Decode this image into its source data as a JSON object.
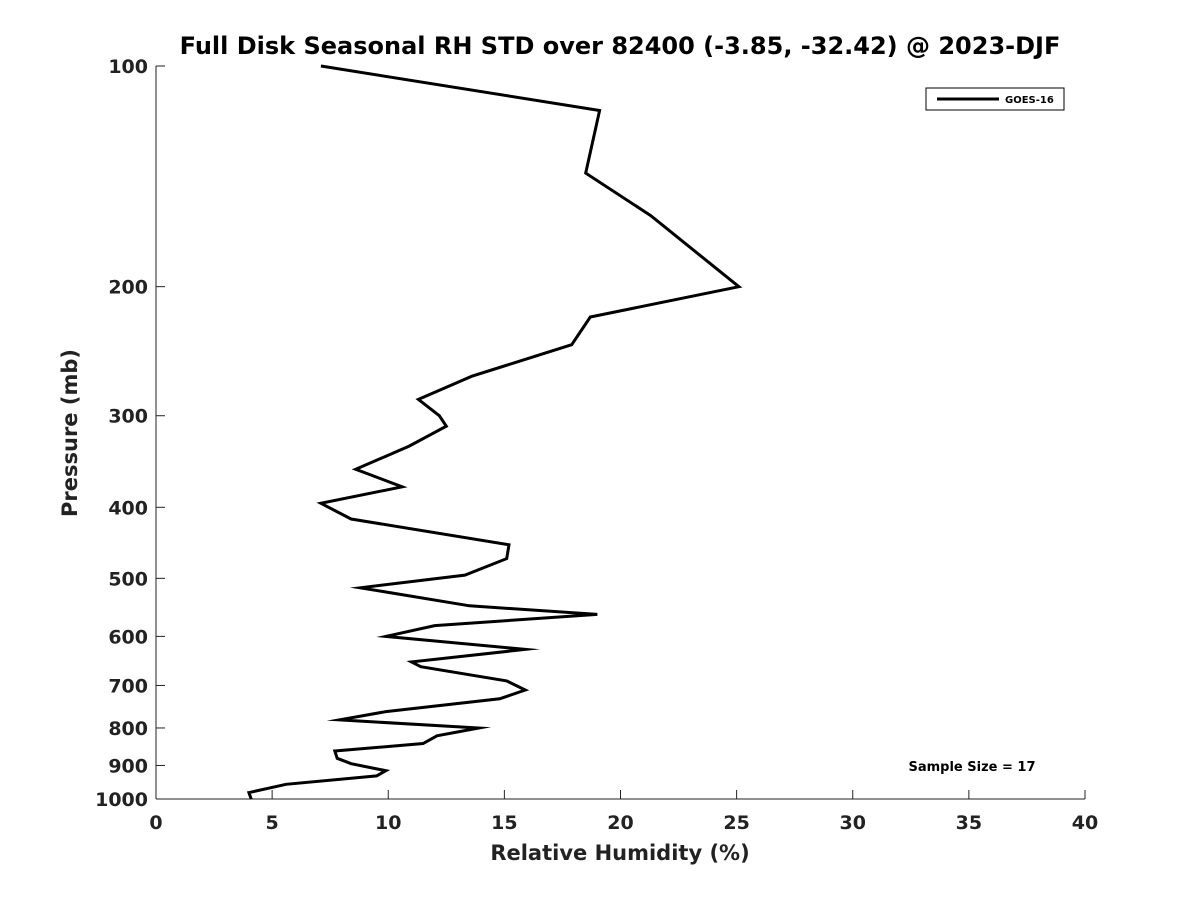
{
  "chart_data": {
    "type": "line",
    "title": "Full Disk Seasonal RH STD over 82400 (-3.85, -32.42) @ 2023-DJF",
    "xlabel": "Relative Humidity (%)",
    "ylabel": "Pressure (mb)",
    "xlim": [
      0,
      40
    ],
    "ylim": [
      1000,
      100
    ],
    "yscale": "log",
    "xticks": [
      0,
      5,
      10,
      15,
      20,
      25,
      30,
      35,
      40
    ],
    "yticks": [
      100,
      200,
      300,
      400,
      500,
      600,
      700,
      800,
      900,
      1000
    ],
    "grid": false,
    "legend_position": "top-right",
    "series": [
      {
        "name": "GOES-16",
        "color": "#000000",
        "x": [
          7.1,
          19.1,
          18.5,
          21.3,
          25.1,
          18.7,
          17.9,
          13.6,
          11.3,
          12.2,
          12.5,
          10.9,
          8.6,
          10.6,
          7.1,
          8.4,
          15.2,
          15.1,
          13.3,
          8.8,
          13.5,
          19.0,
          12.0,
          9.9,
          15.9,
          11.0,
          11.4,
          15.1,
          15.9,
          14.8,
          9.9,
          7.9,
          13.9,
          12.1,
          11.5,
          7.7,
          7.8,
          8.4,
          9.9,
          9.5,
          5.6,
          4.0,
          4.1
        ],
        "y": [
          100,
          115,
          140,
          160,
          200,
          220,
          240,
          265,
          285,
          300,
          310,
          330,
          355,
          375,
          395,
          415,
          450,
          470,
          495,
          515,
          545,
          560,
          580,
          600,
          625,
          650,
          660,
          690,
          710,
          730,
          760,
          780,
          800,
          820,
          840,
          860,
          880,
          895,
          915,
          930,
          955,
          980,
          1000
        ]
      }
    ],
    "annotations": [
      {
        "text": "Sample Size = 17",
        "position": "bottom-right"
      }
    ]
  }
}
